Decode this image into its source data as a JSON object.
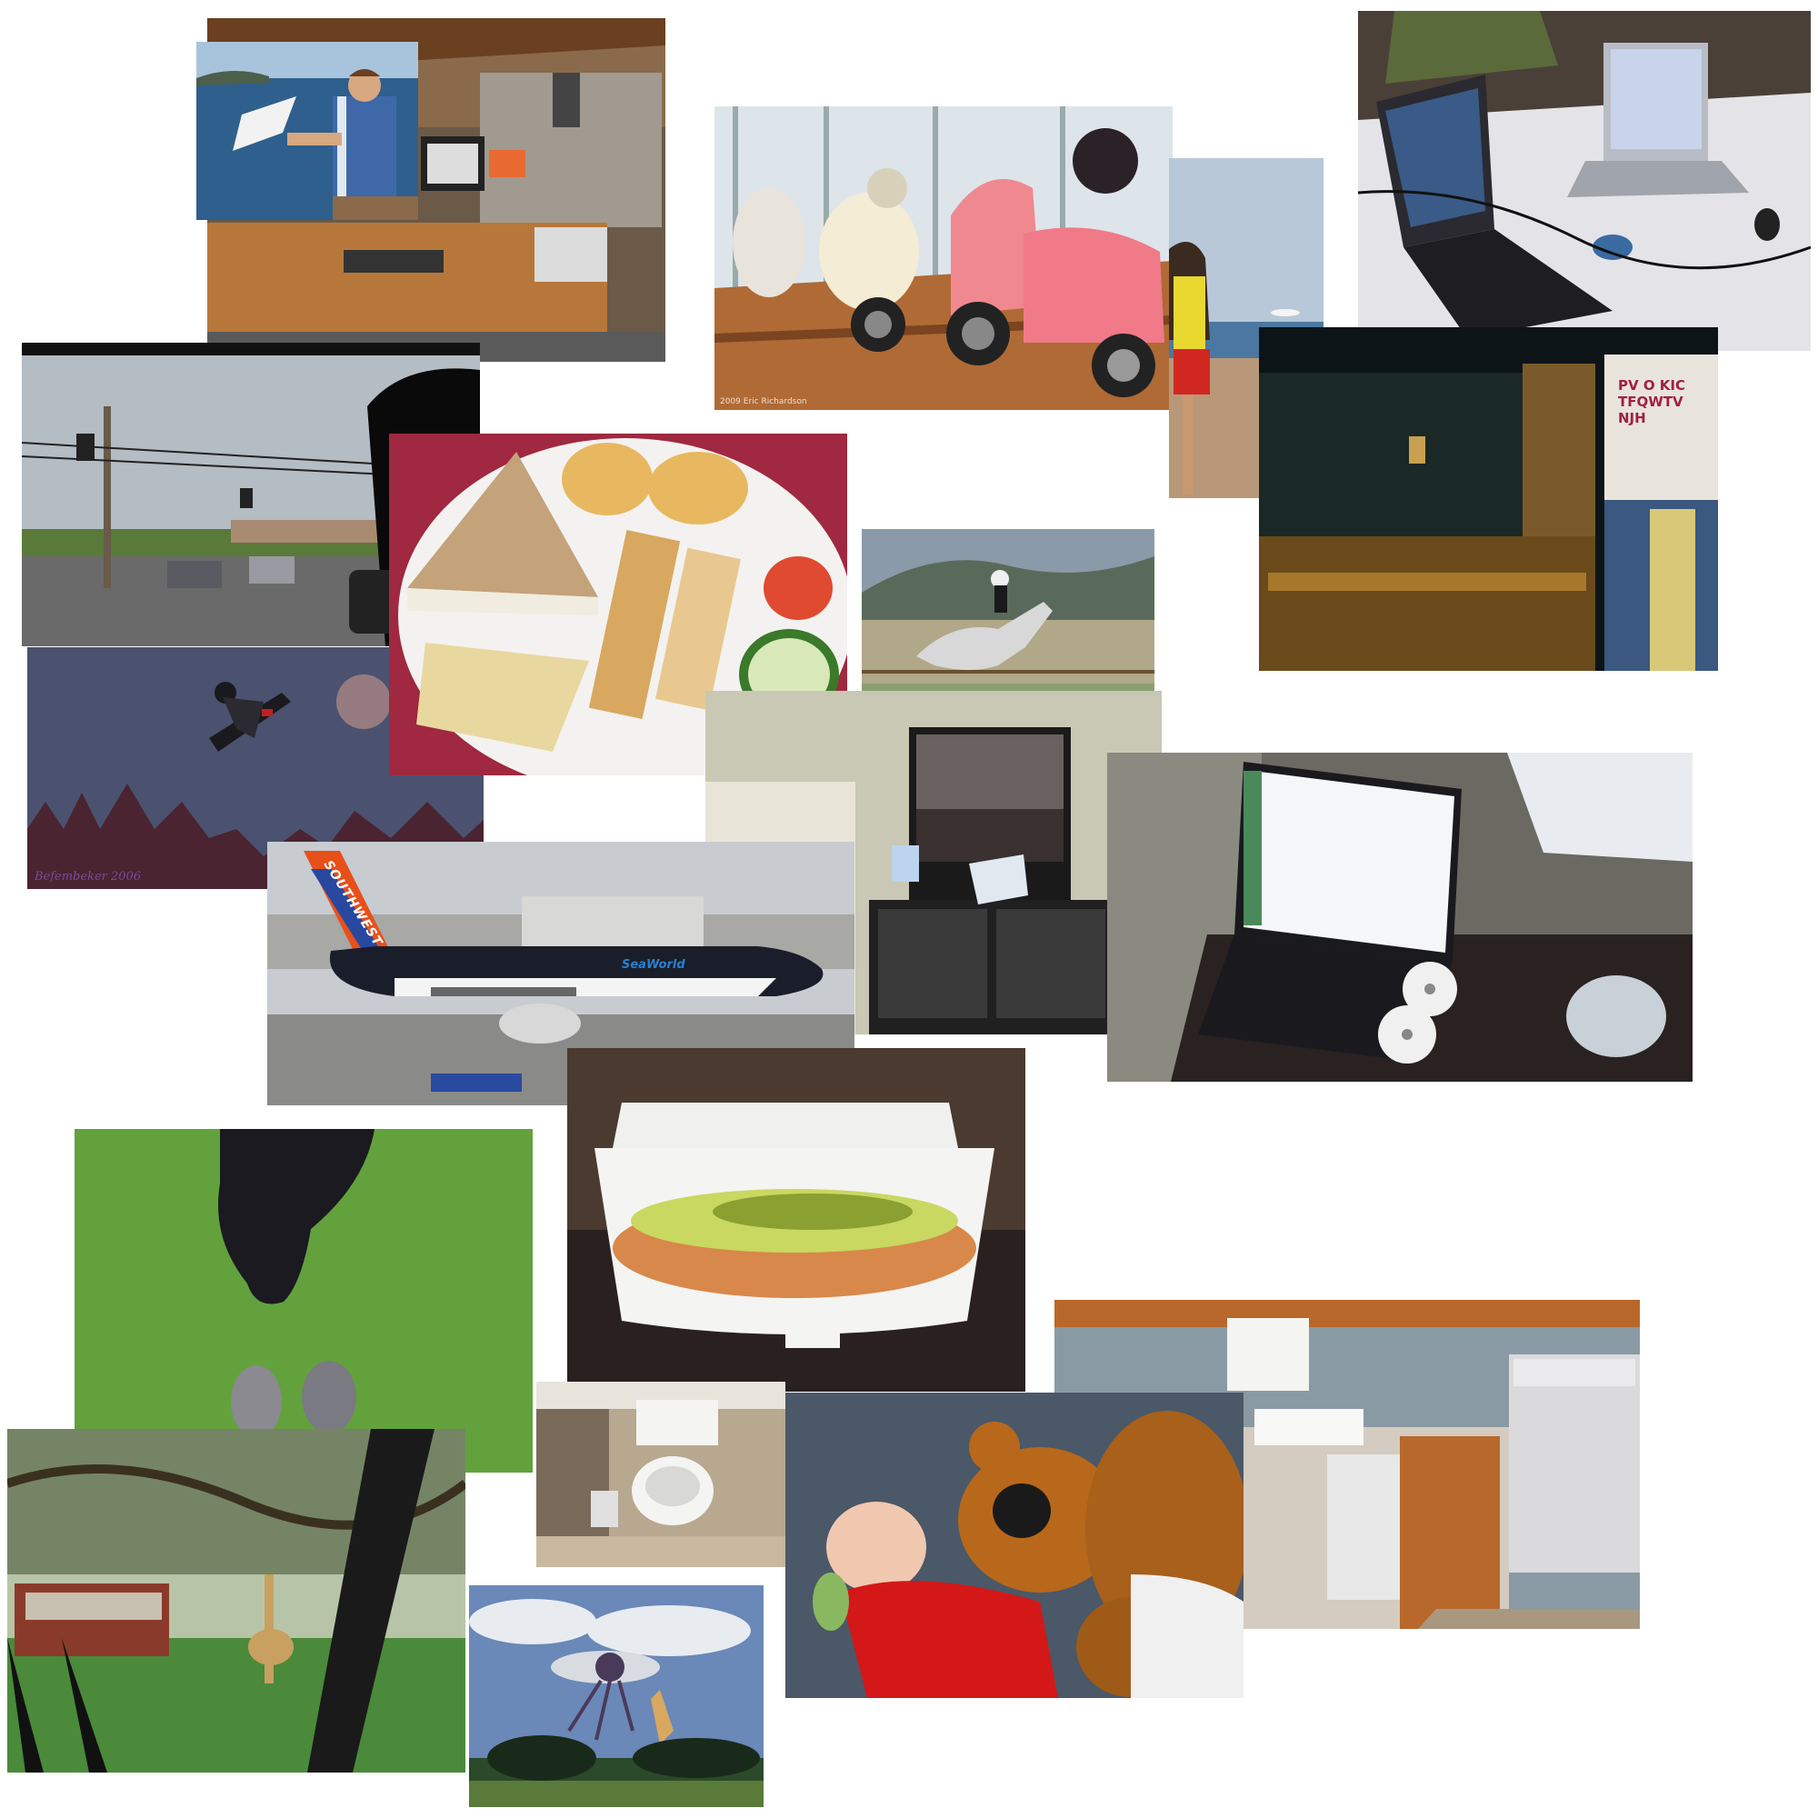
{
  "collage": {
    "photos": [
      {
        "id": "office",
        "subject": "office-desk"
      },
      {
        "id": "vespa",
        "subject": "scooters",
        "caption": "2009 Eric Richardson"
      },
      {
        "id": "laptops-table",
        "subject": "laptops"
      },
      {
        "id": "beach",
        "subject": "beach-frisbee"
      },
      {
        "id": "suitcases",
        "subject": "suitcases",
        "wall_letters": "PV  O  KIC  TFQWTV  NJH"
      },
      {
        "id": "car-window",
        "subject": "intersection"
      },
      {
        "id": "food-plate",
        "subject": "sandwich-plate"
      },
      {
        "id": "horse",
        "subject": "horse-jump"
      },
      {
        "id": "snowboard",
        "subject": "snowboarder",
        "caption": "Befembeker 2006"
      },
      {
        "id": "tv-room",
        "subject": "television"
      },
      {
        "id": "hp-laptop",
        "subject": "laptop-desk"
      },
      {
        "id": "plane",
        "subject": "airplane",
        "tail_text": "SOUTHWEST",
        "fuselage_text": "SeaWorld"
      },
      {
        "id": "dog-grass",
        "subject": "dog"
      },
      {
        "id": "hotdog",
        "subject": "hot-dog"
      },
      {
        "id": "kitchen",
        "subject": "kitchen"
      },
      {
        "id": "bathroom",
        "subject": "toilet"
      },
      {
        "id": "baby-bear",
        "subject": "teddy-bear"
      },
      {
        "id": "giraffe",
        "subject": "giraffe-safari"
      },
      {
        "id": "kites",
        "subject": "kites"
      }
    ]
  }
}
